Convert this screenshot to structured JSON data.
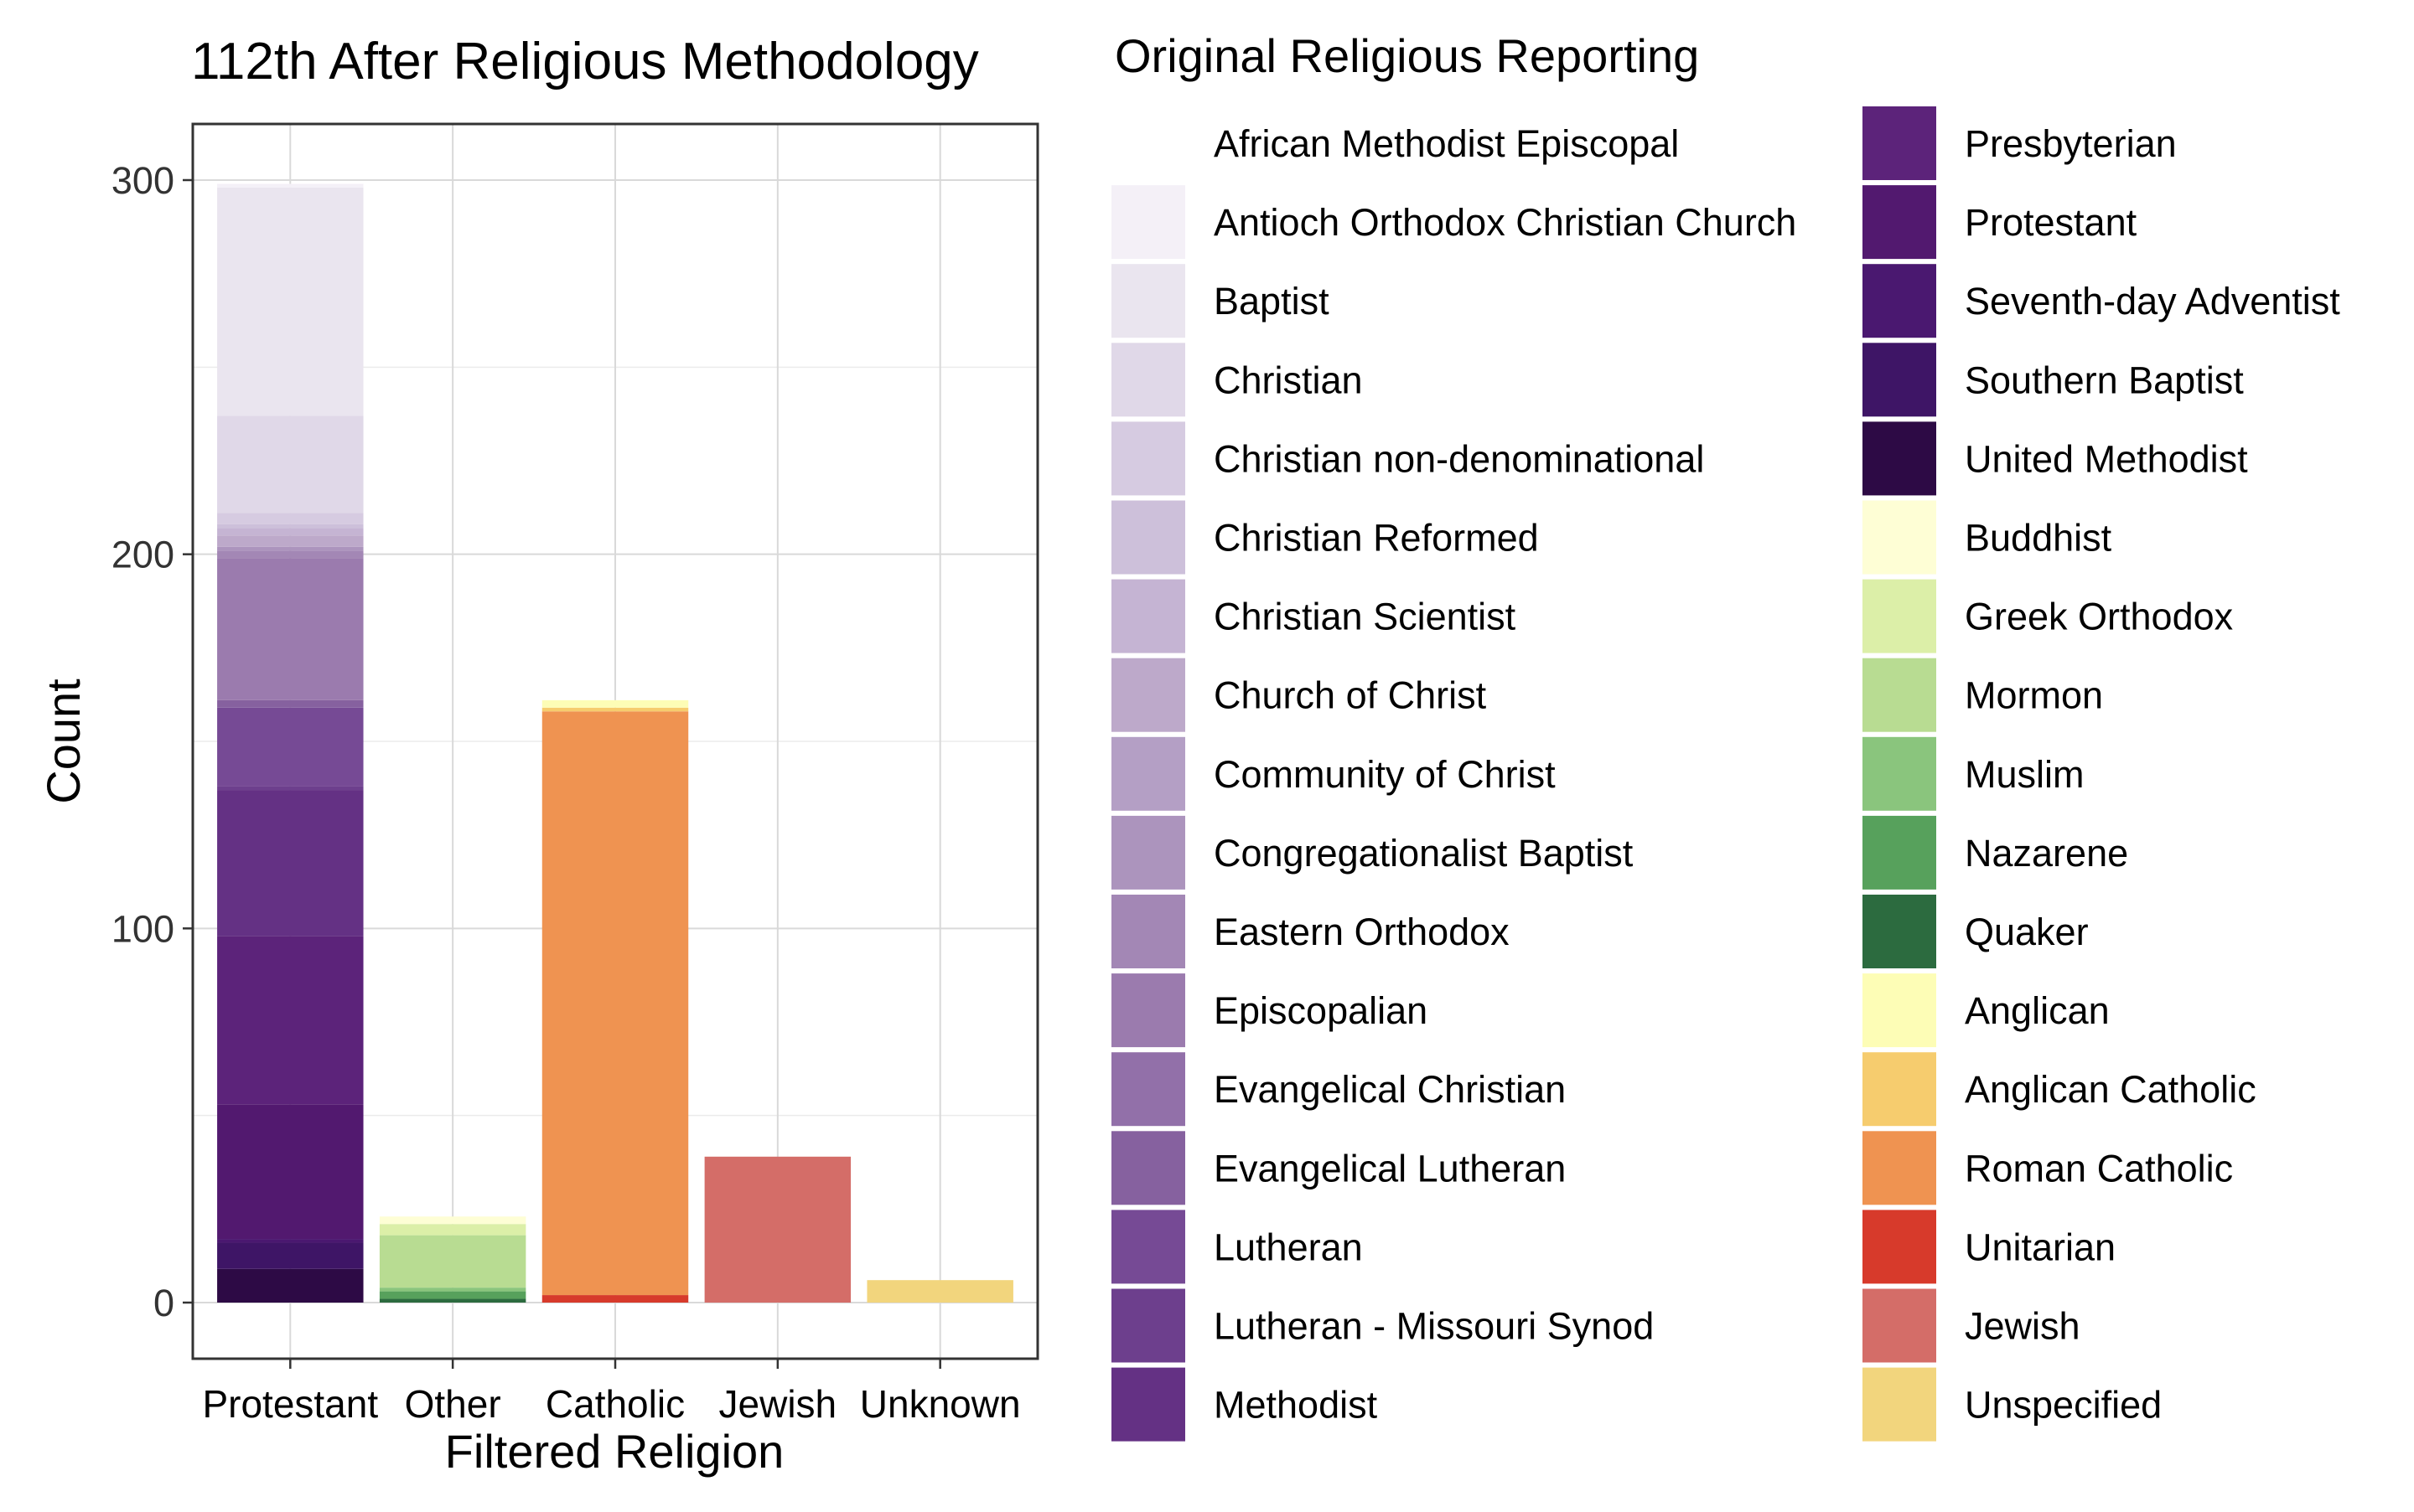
{
  "chart_data": {
    "type": "bar",
    "stacked": true,
    "title": "112th After Religious Methodology",
    "xlabel": "Filtered Religion",
    "ylabel": "Count",
    "ylim": [
      -15,
      315
    ],
    "yticks": [
      0,
      100,
      200,
      300
    ],
    "grid": true,
    "legend_title": "Original Religious Reporting",
    "legend_placement": "right",
    "categories": [
      "Protestant",
      "Other",
      "Catholic",
      "Jewish",
      "Unknown"
    ],
    "series": [
      {
        "name": "United Methodist",
        "color": "#2d0a45",
        "values": [
          9,
          0,
          0,
          0,
          0
        ]
      },
      {
        "name": "Southern Baptist",
        "color": "#3e1566",
        "values": [
          7,
          0,
          0,
          0,
          0
        ]
      },
      {
        "name": "Seventh-day Adventist",
        "color": "#4a1870",
        "values": [
          1,
          0,
          0,
          0,
          0
        ]
      },
      {
        "name": "Protestant",
        "color": "#52196f",
        "values": [
          36,
          0,
          0,
          0,
          0
        ]
      },
      {
        "name": "Presbyterian",
        "color": "#5c237a",
        "values": [
          45,
          0,
          0,
          0,
          0
        ]
      },
      {
        "name": "Methodist",
        "color": "#643184",
        "values": [
          39,
          0,
          0,
          0,
          0
        ]
      },
      {
        "name": "Lutheran - Missouri Synod",
        "color": "#6d3f8d",
        "values": [
          1,
          0,
          0,
          0,
          0
        ]
      },
      {
        "name": "Lutheran",
        "color": "#764a95",
        "values": [
          21,
          0,
          0,
          0,
          0
        ]
      },
      {
        "name": "Evangelical Lutheran",
        "color": "#86619f",
        "values": [
          2,
          0,
          0,
          0,
          0
        ]
      },
      {
        "name": "Evangelical Christian",
        "color": "#9270a9",
        "values": [
          0,
          0,
          0,
          0,
          0
        ]
      },
      {
        "name": "Episcopalian",
        "color": "#9b7bae",
        "values": [
          38,
          0,
          0,
          0,
          0
        ]
      },
      {
        "name": "Eastern Orthodox",
        "color": "#a387b5",
        "values": [
          2,
          0,
          0,
          0,
          0
        ]
      },
      {
        "name": "Congregationalist Baptist",
        "color": "#ac94bd",
        "values": [
          1,
          0,
          0,
          0,
          0
        ]
      },
      {
        "name": "Community of Christ",
        "color": "#b49fc5",
        "values": [
          0,
          0,
          0,
          0,
          0
        ]
      },
      {
        "name": "Church of Christ",
        "color": "#bda9ca",
        "values": [
          3,
          0,
          0,
          0,
          0
        ]
      },
      {
        "name": "Christian Scientist",
        "color": "#c5b4d3",
        "values": [
          2,
          0,
          0,
          0,
          0
        ]
      },
      {
        "name": "Christian Reformed",
        "color": "#cdc0da",
        "values": [
          1,
          0,
          0,
          0,
          0
        ]
      },
      {
        "name": "Christian non-denominational",
        "color": "#d6cbe1",
        "values": [
          3,
          0,
          0,
          0,
          0
        ]
      },
      {
        "name": "Christian",
        "color": "#e0d8e8",
        "values": [
          26,
          0,
          0,
          0,
          0
        ]
      },
      {
        "name": "Baptist",
        "color": "#eae5ef",
        "values": [
          61,
          0,
          0,
          0,
          0
        ]
      },
      {
        "name": "Antioch Orthodox Christian Church",
        "color": "#f4f0f7",
        "values": [
          1,
          0,
          0,
          0,
          0
        ]
      },
      {
        "name": "African Methodist Episcopal",
        "color": "#ffffff",
        "values": [
          0,
          0,
          0,
          0,
          0
        ]
      },
      {
        "name": "Quaker",
        "color": "#2c6b3f",
        "values": [
          0,
          1,
          0,
          0,
          0
        ]
      },
      {
        "name": "Nazarene",
        "color": "#57a15c",
        "values": [
          0,
          2,
          0,
          0,
          0
        ]
      },
      {
        "name": "Muslim",
        "color": "#8ac57d",
        "values": [
          0,
          1,
          0,
          0,
          0
        ]
      },
      {
        "name": "Mormon",
        "color": "#b8dc92",
        "values": [
          0,
          14,
          0,
          0,
          0
        ]
      },
      {
        "name": "Greek Orthodox",
        "color": "#dcefa8",
        "values": [
          0,
          3,
          0,
          0,
          0
        ]
      },
      {
        "name": "Buddhist",
        "color": "#fefed5",
        "values": [
          0,
          2,
          0,
          0,
          0
        ]
      },
      {
        "name": "Unitarian",
        "color": "#d73a2b",
        "values": [
          0,
          0,
          2,
          0,
          0
        ]
      },
      {
        "name": "Roman Catholic",
        "color": "#ef9351",
        "values": [
          0,
          0,
          156,
          0,
          0
        ]
      },
      {
        "name": "Anglican Catholic",
        "color": "#f6cc6e",
        "values": [
          0,
          0,
          1,
          0,
          0
        ]
      },
      {
        "name": "Anglican",
        "color": "#fdfdb6",
        "values": [
          0,
          0,
          2,
          0,
          0
        ]
      },
      {
        "name": "Jewish",
        "color": "#d46d68",
        "values": [
          0,
          0,
          0,
          39,
          0
        ]
      },
      {
        "name": "Unspecified",
        "color": "#f2d57d",
        "values": [
          0,
          0,
          0,
          0,
          6
        ]
      }
    ],
    "legend_columns": [
      [
        "African Methodist Episcopal",
        "Antioch Orthodox Christian Church",
        "Baptist",
        "Christian",
        "Christian non-denominational",
        "Christian Reformed",
        "Christian Scientist",
        "Church of Christ",
        "Community of Christ",
        "Congregationalist Baptist",
        "Eastern Orthodox",
        "Episcopalian",
        "Evangelical Christian",
        "Evangelical Lutheran",
        "Lutheran",
        "Lutheran - Missouri Synod",
        "Methodist"
      ],
      [
        "Presbyterian",
        "Protestant",
        "Seventh-day Adventist",
        "Southern Baptist",
        "United Methodist",
        "Buddhist",
        "Greek Orthodox",
        "Mormon",
        "Muslim",
        "Nazarene",
        "Quaker",
        "Anglican",
        "Anglican Catholic",
        "Roman Catholic",
        "Unitarian",
        "Jewish",
        "Unspecified"
      ]
    ]
  }
}
